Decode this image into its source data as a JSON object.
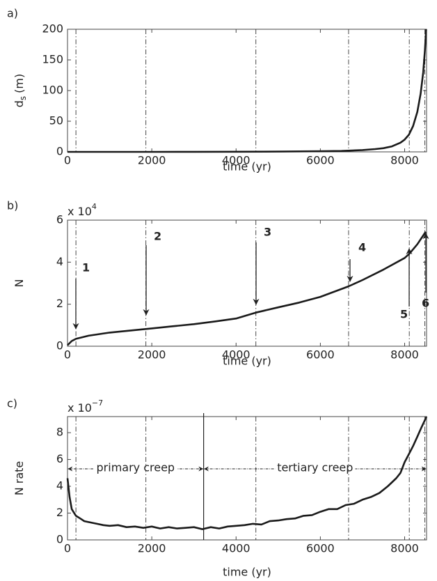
{
  "chart_data": [
    {
      "type": "line",
      "panel_label": "a)",
      "ylabel": "d",
      "ylabel_sub": "s",
      "ylabel_rest": "(m)",
      "xlabel": "time (yr)",
      "x": [
        0,
        1000,
        2000,
        3000,
        4000,
        5000,
        6000,
        6500,
        7000,
        7300,
        7500,
        7700,
        7800,
        7900,
        8000,
        8100,
        8200,
        8300,
        8380,
        8440,
        8480,
        8510
      ],
      "values": [
        0,
        0,
        0,
        0.1,
        0.2,
        0.4,
        1,
        1.5,
        3,
        4.5,
        6,
        9,
        12,
        15,
        20,
        28,
        42,
        65,
        95,
        130,
        165,
        200
      ],
      "color": "#1a1a1a",
      "xlim": [
        0,
        8520
      ],
      "ylim": [
        0,
        200
      ],
      "xticks": [
        0,
        2000,
        4000,
        6000,
        8000
      ],
      "yticks": [
        0,
        50,
        100,
        150,
        200
      ],
      "vlines": [
        200,
        1860,
        4470,
        6670,
        8110,
        8480
      ]
    },
    {
      "type": "line",
      "panel_label": "b)",
      "ylabel": "N",
      "xlabel": "time (yr)",
      "multiplier": "x 10",
      "multiplier_exp": "4",
      "x": [
        0,
        100,
        200,
        500,
        1000,
        1500,
        2000,
        2500,
        3000,
        3500,
        4000,
        4470,
        5000,
        5500,
        6000,
        6670,
        7000,
        7500,
        8000,
        8110,
        8300,
        8500
      ],
      "values": [
        0.05,
        0.25,
        0.35,
        0.5,
        0.65,
        0.75,
        0.85,
        0.95,
        1.05,
        1.18,
        1.32,
        1.6,
        1.85,
        2.08,
        2.35,
        2.85,
        3.15,
        3.65,
        4.2,
        4.4,
        4.85,
        5.45
      ],
      "color": "#1a1a1a",
      "xlim": [
        0,
        8520
      ],
      "ylim": [
        0,
        6
      ],
      "xticks": [
        0,
        2000,
        4000,
        6000,
        8000
      ],
      "yticks": [
        0,
        2,
        4,
        6
      ],
      "vlines": [
        200,
        1860,
        4470,
        6670,
        8110,
        8480
      ],
      "annotations": [
        "1",
        "2",
        "3",
        "4",
        "5",
        "6"
      ]
    },
    {
      "type": "line",
      "panel_label": "c)",
      "ylabel": "N rate",
      "xlabel": "time (yr)",
      "multiplier": "x 10",
      "multiplier_exp": "−7",
      "x": [
        0,
        50,
        100,
        200,
        300,
        400,
        550,
        700,
        850,
        1000,
        1200,
        1400,
        1600,
        1800,
        2000,
        2200,
        2400,
        2600,
        2800,
        3000,
        3200,
        3400,
        3600,
        3800,
        4000,
        4200,
        4400,
        4600,
        4800,
        5000,
        5200,
        5400,
        5600,
        5800,
        6000,
        6200,
        6400,
        6600,
        6800,
        7000,
        7200,
        7400,
        7600,
        7800,
        7900,
        8000,
        8100,
        8200,
        8300,
        8400,
        8520
      ],
      "values": [
        4.6,
        3.2,
        2.3,
        1.8,
        1.6,
        1.4,
        1.3,
        1.2,
        1.1,
        1.05,
        1.1,
        0.95,
        1.0,
        0.9,
        1.0,
        0.85,
        0.95,
        0.85,
        0.9,
        0.95,
        0.8,
        0.95,
        0.85,
        1.0,
        1.05,
        1.1,
        1.2,
        1.15,
        1.4,
        1.45,
        1.55,
        1.6,
        1.8,
        1.85,
        2.1,
        2.3,
        2.3,
        2.6,
        2.7,
        3.0,
        3.2,
        3.5,
        4.0,
        4.6,
        5.0,
        5.8,
        6.4,
        7.0,
        7.7,
        8.4,
        9.2
      ],
      "color": "#1a1a1a",
      "xlim": [
        0,
        8520
      ],
      "ylim": [
        0,
        9.2
      ],
      "xticks": [
        0,
        2000,
        4000,
        6000,
        8000
      ],
      "yticks": [
        0,
        2,
        4,
        6,
        8
      ],
      "vlines": [
        200,
        1860,
        4470,
        6670,
        8110,
        8480
      ],
      "divider": 3230,
      "span_level": 5.3,
      "spans": [
        "primary creep",
        "tertiary creep"
      ]
    }
  ]
}
